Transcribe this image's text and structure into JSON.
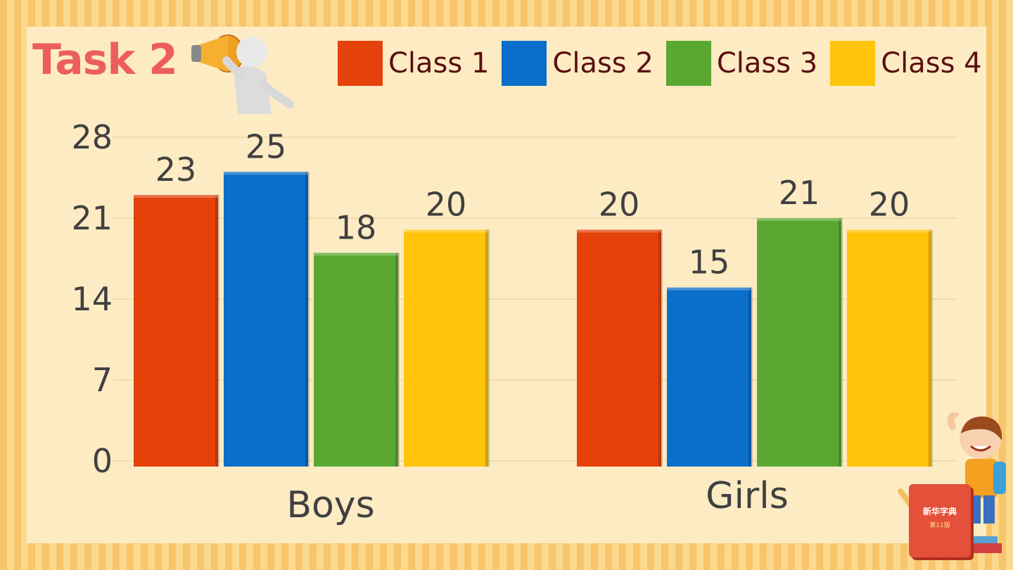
{
  "slide": {
    "title": "Task 2"
  },
  "colors": {
    "class1": "#e5410a",
    "class2": "#0a6ecb",
    "class3": "#5aa832",
    "class4": "#ffc50a"
  },
  "icons": {
    "megaphone": "megaphone-person-icon",
    "kid": "waving-kid-icon",
    "book": "dictionary-book-icon"
  },
  "book_text": {
    "title": "新华字典",
    "edition": "第11版"
  },
  "chart_data": {
    "type": "bar",
    "title": "",
    "xlabel": "",
    "ylabel": "",
    "categories": [
      "Boys",
      "Girls"
    ],
    "series": [
      {
        "name": "Class 1",
        "values": [
          23,
          20
        ]
      },
      {
        "name": "Class 2",
        "values": [
          25,
          15
        ]
      },
      {
        "name": "Class 3",
        "values": [
          18,
          21
        ]
      },
      {
        "name": "Class 4",
        "values": [
          20,
          20
        ]
      }
    ],
    "yticks": [
      0,
      7,
      14,
      21,
      28
    ],
    "ylim": [
      0,
      28
    ],
    "grid": true,
    "legend": "top"
  }
}
